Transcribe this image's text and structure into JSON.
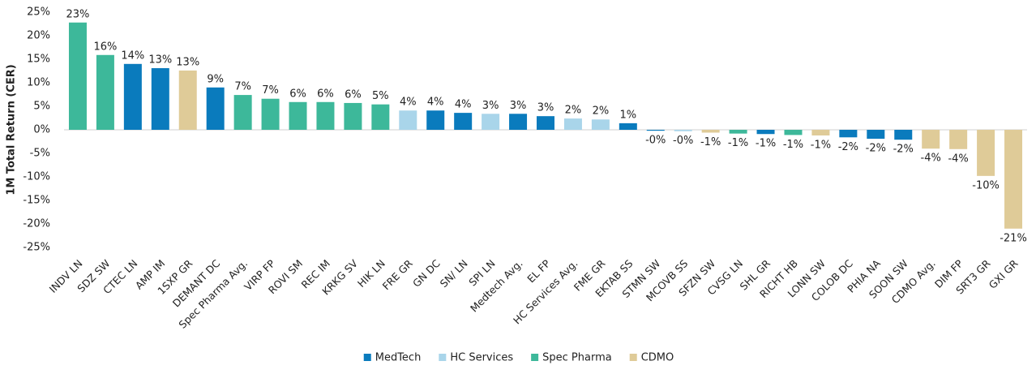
{
  "chart_data": {
    "type": "bar",
    "y_label": "1M Total Return (CER)",
    "categories": [
      "INDV LN",
      "SDZ SW",
      "CTEC LN",
      "AMP IM",
      "1SXP GR",
      "DEMANT DC",
      "Spec Pharma Avg.",
      "VIRP FP",
      "ROVI SM",
      "REC IM",
      "KRKG SV",
      "HIK LN",
      "FRE GR",
      "GN DC",
      "SN/ LN",
      "SPI LN",
      "Medtech Avg.",
      "EL FP",
      "HC Services Avg.",
      "FME GR",
      "EKTAB SS",
      "STMN SW",
      "MCOVB SS",
      "SFZN SW",
      "CVSG LN",
      "SHL GR",
      "RICHT HB",
      "LONN SW",
      "COLOB DC",
      "PHIA NA",
      "SOON SW",
      "CDMO Avg.",
      "DIM FP",
      "SRT3 GR",
      "GXI GR"
    ],
    "series": [
      {
        "name": "MedTech",
        "color": "#0a7bbd",
        "values": [
          null,
          null,
          14.0,
          13.1,
          null,
          9.0,
          null,
          null,
          null,
          null,
          null,
          null,
          null,
          4.1,
          3.6,
          null,
          3.4,
          2.9,
          null,
          null,
          1.4,
          -0.2,
          null,
          null,
          null,
          -0.9,
          null,
          null,
          -1.6,
          -1.9,
          -2.1,
          null,
          null,
          null,
          null
        ],
        "value_labels": [
          null,
          null,
          "14%",
          "13%",
          null,
          "9%",
          null,
          null,
          null,
          null,
          null,
          null,
          null,
          "4%",
          "4%",
          null,
          "3%",
          "3%",
          null,
          null,
          "1%",
          "-0%",
          null,
          null,
          null,
          "-1%",
          null,
          null,
          "-2%",
          "-2%",
          "-2%",
          null,
          null,
          null,
          null
        ]
      },
      {
        "name": "HC Services",
        "color": "#a9d5ea",
        "values": [
          null,
          null,
          null,
          null,
          null,
          null,
          null,
          null,
          null,
          null,
          null,
          null,
          4.1,
          null,
          null,
          3.4,
          null,
          null,
          2.4,
          2.2,
          null,
          null,
          -0.3,
          null,
          null,
          null,
          null,
          null,
          null,
          null,
          null,
          null,
          null,
          null,
          null
        ],
        "value_labels": [
          null,
          null,
          null,
          null,
          null,
          null,
          null,
          null,
          null,
          null,
          null,
          null,
          "4%",
          null,
          null,
          "3%",
          null,
          null,
          "2%",
          "2%",
          null,
          null,
          "-0%",
          null,
          null,
          null,
          null,
          null,
          null,
          null,
          null,
          null,
          null,
          null,
          null
        ]
      },
      {
        "name": "Spec Pharma",
        "color": "#3db89a",
        "values": [
          22.8,
          15.9,
          null,
          null,
          null,
          null,
          7.4,
          6.6,
          5.9,
          5.9,
          5.7,
          5.4,
          null,
          null,
          null,
          null,
          null,
          null,
          null,
          null,
          null,
          null,
          null,
          null,
          -0.8,
          null,
          -1.1,
          null,
          null,
          null,
          null,
          null,
          null,
          null,
          null
        ],
        "value_labels": [
          "23%",
          "16%",
          null,
          null,
          null,
          null,
          "7%",
          "7%",
          "6%",
          "6%",
          "6%",
          "5%",
          null,
          null,
          null,
          null,
          null,
          null,
          null,
          null,
          null,
          null,
          null,
          null,
          "-1%",
          null,
          "-1%",
          null,
          null,
          null,
          null,
          null,
          null,
          null,
          null
        ]
      },
      {
        "name": "CDMO",
        "color": "#dfcb98",
        "values": [
          null,
          null,
          null,
          null,
          12.6,
          null,
          null,
          null,
          null,
          null,
          null,
          null,
          null,
          null,
          null,
          null,
          null,
          null,
          null,
          null,
          null,
          null,
          null,
          -0.6,
          null,
          null,
          null,
          -1.2,
          null,
          null,
          null,
          -4.0,
          -4.1,
          -9.8,
          -21.0
        ],
        "value_labels": [
          null,
          null,
          null,
          null,
          "13%",
          null,
          null,
          null,
          null,
          null,
          null,
          null,
          null,
          null,
          null,
          null,
          null,
          null,
          null,
          null,
          null,
          null,
          null,
          "-1%",
          null,
          null,
          null,
          "-1%",
          null,
          null,
          null,
          "-4%",
          "-4%",
          "-10%",
          "-21%"
        ]
      }
    ],
    "ylim": [
      -25,
      25
    ],
    "yticks": [
      {
        "value": -25,
        "label": "-25%"
      },
      {
        "value": -20,
        "label": "-20%"
      },
      {
        "value": -15,
        "label": "-15%"
      },
      {
        "value": -10,
        "label": "-10%"
      },
      {
        "value": -5,
        "label": "-5%"
      },
      {
        "value": 0,
        "label": "0%"
      },
      {
        "value": 5,
        "label": "5%"
      },
      {
        "value": 10,
        "label": "10%"
      },
      {
        "value": 15,
        "label": "15%"
      },
      {
        "value": 20,
        "label": "20%"
      },
      {
        "value": 25,
        "label": "25%"
      }
    ],
    "grid": false,
    "legend": "bottom"
  }
}
